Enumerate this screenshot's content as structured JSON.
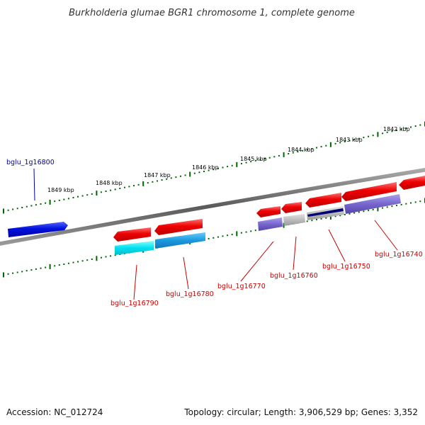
{
  "title": "Burkholderia glumae BGR1 chromosome 1, complete genome",
  "footer": {
    "accession": "Accession: NC_012724",
    "summary": "Topology: circular; Length: 3,906,529 bp; Genes: 3,352"
  },
  "scale_labels": [
    "1849 kbp",
    "1848 kbp",
    "1847 kbp",
    "1846 kbp",
    "1845 kbp",
    "1844 kbp",
    "1843 kbp",
    "1842 kbp"
  ],
  "genes": [
    {
      "id": "bglu_1g16800",
      "color": "#0000aa"
    },
    {
      "id": "bglu_1g16790",
      "color": "#cc0000"
    },
    {
      "id": "bglu_1g16780",
      "color": "#cc0000"
    },
    {
      "id": "bglu_1g16770",
      "color": "#cc0000"
    },
    {
      "id": "bglu_1g16760",
      "color": "#cc0000"
    },
    {
      "id": "bglu_1g16750",
      "color": "#cc0000"
    },
    {
      "id": "bglu_1g16740",
      "color": "#cc0000"
    }
  ],
  "colors": {
    "backbone": "#777777",
    "scale_ticks": "#006600",
    "forward_gene": "#2222dd",
    "reverse_gene": "#ee1111",
    "cyan_feature": "#00ddee",
    "blue_feature": "#2299dd",
    "purple_feature": "#7766cc",
    "gray_feature": "#bbbbbb",
    "navy_feature": "#000077"
  }
}
